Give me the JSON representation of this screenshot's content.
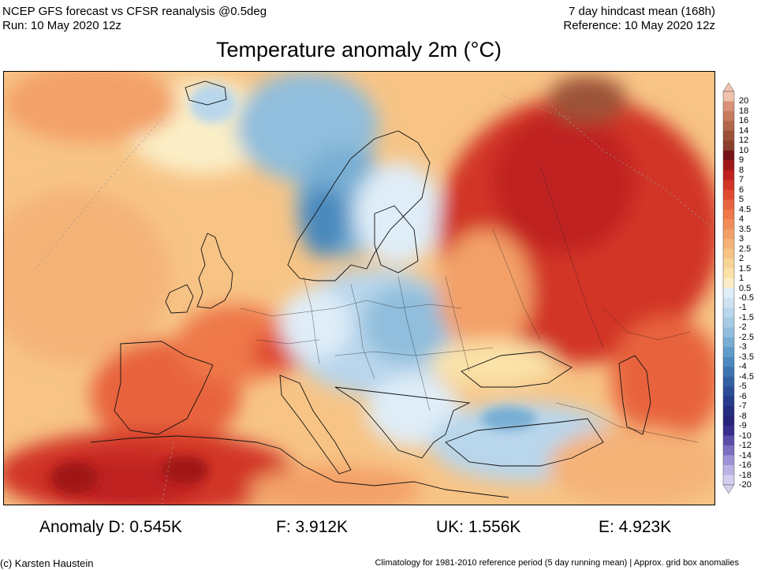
{
  "header": {
    "model_line": "NCEP GFS forecast vs CFSR reanalysis @0.5deg",
    "run_line": "Run: 10 May 2020 12z",
    "mean_line": "7 day hindcast mean (168h)",
    "reference_line": "Reference: 10 May 2020 12z"
  },
  "title": "Temperature anomaly 2m (°C)",
  "colorbar": {
    "labels": [
      "20",
      "18",
      "16",
      "14",
      "12",
      "10",
      "9",
      "8",
      "7",
      "6",
      "5",
      "4.5",
      "4",
      "3.5",
      "3",
      "2.5",
      "2",
      "1.5",
      "1",
      "0.5",
      "-0.5",
      "-1",
      "-1.5",
      "-2",
      "-2.5",
      "-3",
      "-3.5",
      "-4",
      "-4.5",
      "-5",
      "-6",
      "-7",
      "-8",
      "-9",
      "-10",
      "-12",
      "-14",
      "-16",
      "-18",
      "-20"
    ],
    "colors": [
      "#eec2ac",
      "#d99278",
      "#c77a5e",
      "#b1664c",
      "#9c5238",
      "#8a3e2c",
      "#781418",
      "#a01818",
      "#c02020",
      "#d23426",
      "#e04a30",
      "#e8643e",
      "#ee7848",
      "#f08c58",
      "#f3a067",
      "#f5b277",
      "#f7c486",
      "#f8d496",
      "#fae2a8",
      "#fbeec6",
      "#dfedf8",
      "#cde2f2",
      "#b8d6ec",
      "#a5cbe5",
      "#90bedc",
      "#78aed3",
      "#5f9cc9",
      "#4a89bd",
      "#3d74b0",
      "#3260a3",
      "#2b4c97",
      "#263b8c",
      "#242c7f",
      "#28247a",
      "#3a2e8e",
      "#5a4ea8",
      "#7a6ec0",
      "#9e92d6",
      "#bcb2e6",
      "#d6ceef"
    ],
    "top_color": "#eec2ac",
    "bottom_color": "#d6ceef"
  },
  "stats": {
    "d": "Anomaly D: 0.545K",
    "f": "F: 3.912K",
    "uk": "UK: 1.556K",
    "e": "E: 4.923K"
  },
  "footer": {
    "credit": "(c) Karsten Haustein",
    "note": "Climatology for 1981-2010 reference period (5 day running mean) | Approx. grid box anomalies"
  }
}
